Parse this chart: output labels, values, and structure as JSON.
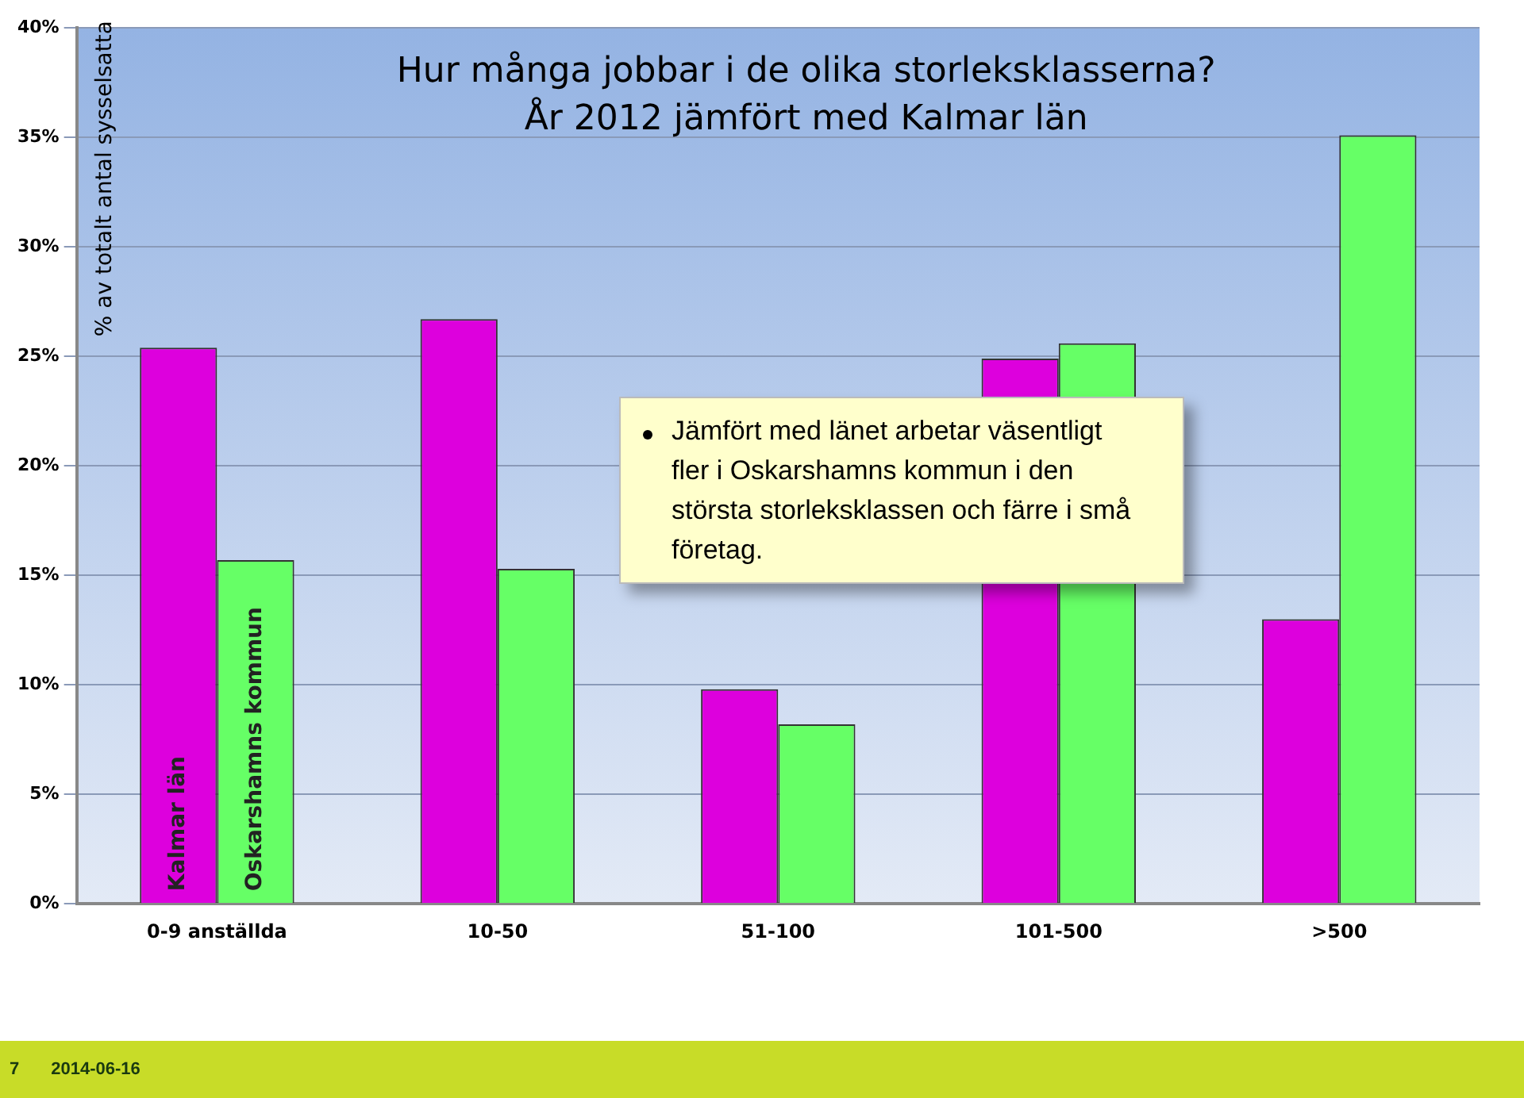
{
  "chart_data": {
    "type": "bar",
    "title": "Hur många jobbar i de olika storleksklasserna?",
    "subtitle": "År 2012 jämfört med Kalmar län",
    "ylabel": "% av totalt antal sysselsatta",
    "categories": [
      "0-9 anställda",
      "10-50",
      "51-100",
      "101-500",
      ">500"
    ],
    "series": [
      {
        "name": "Kalmar län",
        "color": "#dd00dd",
        "values": [
          25.4,
          26.7,
          9.8,
          24.9,
          13.0
        ]
      },
      {
        "name": "Oskarshamns kommun",
        "color": "#66ff66",
        "values": [
          15.7,
          15.3,
          8.2,
          25.6,
          35.1
        ]
      }
    ],
    "ylim": [
      0,
      40
    ],
    "yticks": [
      {
        "value": 0,
        "label": "0%"
      },
      {
        "value": 5,
        "label": "5%"
      },
      {
        "value": 10,
        "label": "10%"
      },
      {
        "value": 15,
        "label": "15%"
      },
      {
        "value": 20,
        "label": "20%"
      },
      {
        "value": 25,
        "label": "25%"
      },
      {
        "value": 30,
        "label": "30%"
      },
      {
        "value": 35,
        "label": "35%"
      },
      {
        "value": 40,
        "label": "40%"
      }
    ],
    "grid": "y",
    "legend": false,
    "annotations": [
      "Jämfört med länet arbetar väsentligt fler i Oskarshamns kommun i den största storleksklassen och färre i små företag.",
      "7",
      "2014-06-16"
    ]
  }
}
